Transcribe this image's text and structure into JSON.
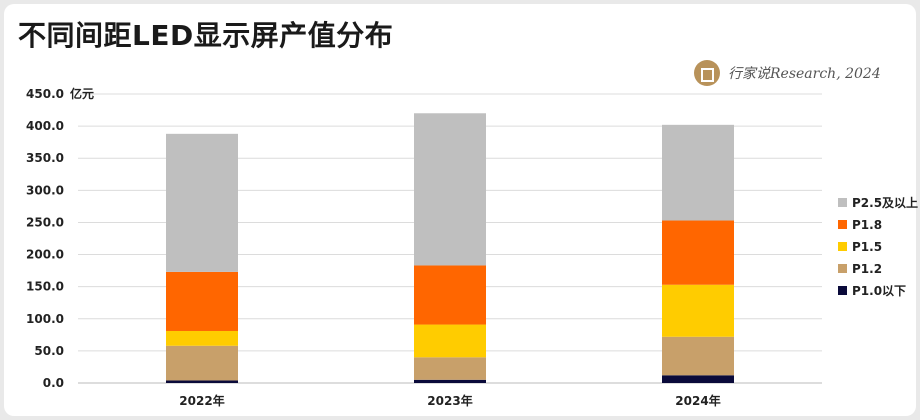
{
  "title": "不同间距LED显示屏产值分布",
  "brand_text": "行家说Research, 2024",
  "chart_data": {
    "type": "bar",
    "stacked": true,
    "ylabel": "亿元",
    "ylim": [
      0,
      450
    ],
    "yticks": [
      "0.0",
      "50.0",
      "100.0",
      "150.0",
      "200.0",
      "250.0",
      "300.0",
      "350.0",
      "400.0",
      "450.0"
    ],
    "categories": [
      "2022年",
      "2023年",
      "2024年"
    ],
    "grid": true,
    "legend_position": "right",
    "series": [
      {
        "name": "P1.0以下",
        "color": "#0a0a3a",
        "values": [
          4,
          5,
          12
        ]
      },
      {
        "name": "P1.2",
        "color": "#c8a06a",
        "values": [
          54,
          35,
          60
        ]
      },
      {
        "name": "P1.5",
        "color": "#ffcc00",
        "values": [
          23,
          51,
          81
        ]
      },
      {
        "name": "P1.8",
        "color": "#ff6600",
        "values": [
          92,
          92,
          100
        ]
      },
      {
        "name": "P2.5及以上",
        "color": "#bfbfbf",
        "values": [
          215,
          237,
          149
        ]
      }
    ]
  }
}
